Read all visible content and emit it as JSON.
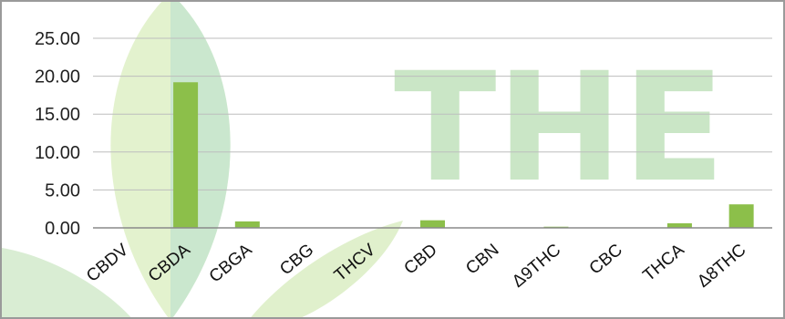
{
  "watermark_text": "THE",
  "colors": {
    "bar": "#8cbf4a",
    "grid": "#bdbdbd",
    "axis": "#8a8a8a",
    "leaf_light": "#dcefc2",
    "leaf_teal": "#bfe3cf"
  },
  "chart_data": {
    "type": "bar",
    "categories": [
      "CBDV",
      "CBDA",
      "CBGA",
      "CBG",
      "THCV",
      "CBD",
      "CBN",
      "Δ9THC",
      "CBC",
      "THCA",
      "Δ8THC"
    ],
    "values": [
      0.0,
      19.2,
      0.85,
      0.0,
      0.0,
      1.0,
      0.0,
      0.15,
      0.05,
      0.6,
      3.1
    ],
    "title": "",
    "xlabel": "",
    "ylabel": "",
    "ylim": [
      0,
      25
    ],
    "yticks": [
      "0.00",
      "5.00",
      "10.00",
      "15.00",
      "20.00",
      "25.00"
    ],
    "grid": true,
    "legend": "none"
  }
}
